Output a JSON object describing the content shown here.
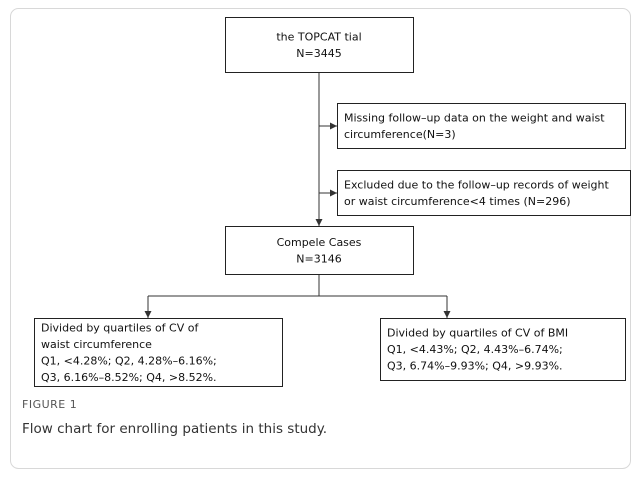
{
  "nodes": [
    {
      "lines": [
        "the TOPCAT tial",
        "N=3445"
      ]
    },
    {
      "lines": [
        "Missing follow–up data on the weight and waist",
        "circumference(N=3)"
      ]
    },
    {
      "lines": [
        "Excluded due to the follow–up records of weight",
        "or waist circumference<4 times (N=296)"
      ]
    },
    {
      "lines": [
        "Compele Cases",
        "N=3146"
      ]
    },
    {
      "lines": [
        "Divided by quartiles of CV of",
        "waist circumference",
        "Q1, <4.28%; Q2, 4.28%–6.16%;",
        "Q3, 6.16%–8.52%; Q4, >8.52%."
      ]
    },
    {
      "lines": [
        "Divided by quartiles of CV of BMI",
        "Q1, <4.43%; Q2, 4.43%–6.74%;",
        "Q3, 6.74%–9.93%; Q4, >9.93%."
      ]
    }
  ],
  "caption": {
    "label": "FIGURE 1",
    "title": "Flow chart for enrolling patients in this study."
  }
}
